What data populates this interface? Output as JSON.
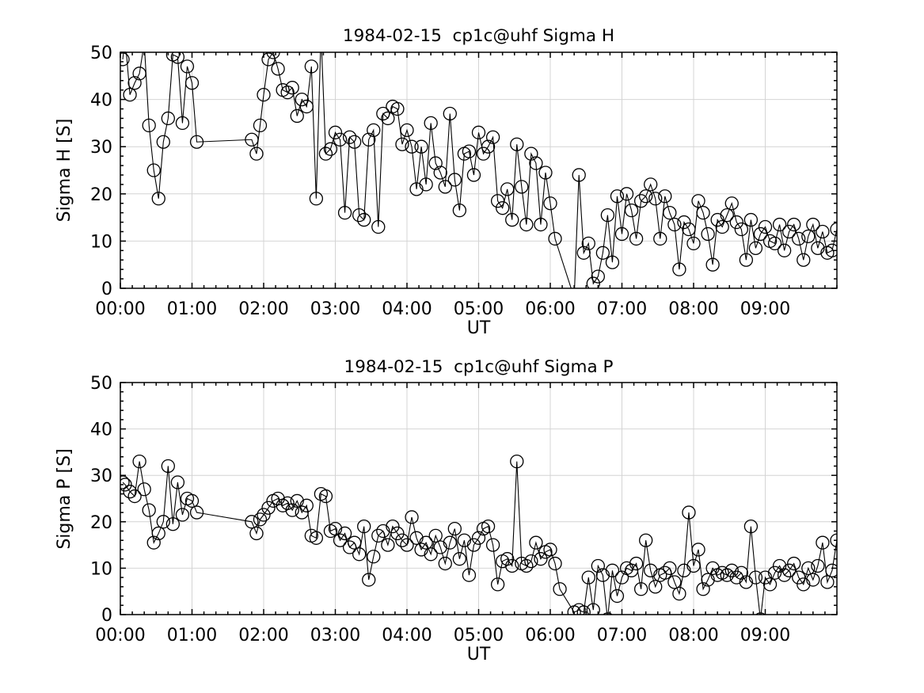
{
  "figure": {
    "background": "#ffffff",
    "foreground": "#000000",
    "grid_color": "#d4d4d4",
    "marker": "open-circle"
  },
  "chart_data": [
    {
      "id": "sigma-h",
      "type": "line",
      "title": "1984-02-15  cp1c@uhf Sigma H",
      "xlabel": "UT",
      "ylabel": "Sigma H [S]",
      "xlim_minutes": [
        0,
        600
      ],
      "ylim": [
        0,
        50
      ],
      "x_major_ticks_minutes": [
        0,
        60,
        120,
        180,
        240,
        300,
        360,
        420,
        480,
        540
      ],
      "x_tick_labels": [
        "00:00",
        "01:00",
        "02:00",
        "03:00",
        "04:00",
        "05:00",
        "06:00",
        "07:00",
        "08:00",
        "09:00"
      ],
      "x_minor_step_minutes": 10,
      "y_major_ticks": [
        0,
        10,
        20,
        30,
        40,
        50
      ],
      "y_tick_labels": [
        "0",
        "10",
        "20",
        "30",
        "40",
        "50"
      ],
      "y_minor_step": 2,
      "grid": true,
      "legend": "none",
      "line_color": "#000000",
      "points": [
        [
          2,
          48.5
        ],
        [
          4,
          53
        ],
        [
          8,
          41
        ],
        [
          12,
          43.5
        ],
        [
          16,
          45.5
        ],
        [
          20,
          52
        ],
        [
          24,
          34.5
        ],
        [
          28,
          25
        ],
        [
          32,
          19
        ],
        [
          36,
          31
        ],
        [
          40,
          36
        ],
        [
          44,
          49.5
        ],
        [
          48,
          49
        ],
        [
          52,
          35
        ],
        [
          56,
          47
        ],
        [
          60,
          43.5
        ],
        [
          64,
          31
        ],
        [
          110,
          31.5
        ],
        [
          114,
          28.5
        ],
        [
          117,
          34.5
        ],
        [
          120,
          41
        ],
        [
          124,
          48.5
        ],
        [
          128,
          50
        ],
        [
          132,
          46.5
        ],
        [
          136,
          42
        ],
        [
          140,
          41.5
        ],
        [
          144,
          42.5
        ],
        [
          148,
          36.5
        ],
        [
          152,
          40
        ],
        [
          156,
          38.5
        ],
        [
          160,
          47
        ],
        [
          164,
          19
        ],
        [
          168,
          54
        ],
        [
          172,
          28.5
        ],
        [
          176,
          29.5
        ],
        [
          180,
          33
        ],
        [
          184,
          31.5
        ],
        [
          188,
          16
        ],
        [
          192,
          32
        ],
        [
          196,
          31
        ],
        [
          200,
          15.5
        ],
        [
          204,
          14.5
        ],
        [
          208,
          31.5
        ],
        [
          212,
          33.5
        ],
        [
          216,
          13
        ],
        [
          220,
          37
        ],
        [
          224,
          36
        ],
        [
          228,
          38.5
        ],
        [
          232,
          38
        ],
        [
          236,
          30.5
        ],
        [
          240,
          33.5
        ],
        [
          244,
          30
        ],
        [
          248,
          21
        ],
        [
          252,
          30
        ],
        [
          256,
          22
        ],
        [
          260,
          35
        ],
        [
          264,
          26.5
        ],
        [
          268,
          24.5
        ],
        [
          272,
          21.5
        ],
        [
          276,
          37
        ],
        [
          280,
          23
        ],
        [
          284,
          16.5
        ],
        [
          288,
          28.5
        ],
        [
          292,
          29
        ],
        [
          296,
          24
        ],
        [
          300,
          33
        ],
        [
          304,
          28.5
        ],
        [
          308,
          30
        ],
        [
          312,
          32
        ],
        [
          316,
          18.5
        ],
        [
          320,
          17
        ],
        [
          324,
          21
        ],
        [
          328,
          14.5
        ],
        [
          332,
          30.5
        ],
        [
          336,
          21.5
        ],
        [
          340,
          13.5
        ],
        [
          344,
          28.5
        ],
        [
          348,
          26.5
        ],
        [
          352,
          13.5
        ],
        [
          356,
          24.5
        ],
        [
          360,
          18
        ],
        [
          364,
          10.5
        ],
        [
          380,
          -2
        ],
        [
          384,
          24
        ],
        [
          388,
          7.5
        ],
        [
          392,
          9.5
        ],
        [
          396,
          1
        ],
        [
          400,
          2.5
        ],
        [
          404,
          7.5
        ],
        [
          408,
          15.5
        ],
        [
          412,
          5.5
        ],
        [
          416,
          19.5
        ],
        [
          420,
          11.5
        ],
        [
          424,
          20
        ],
        [
          428,
          16.5
        ],
        [
          432,
          10.5
        ],
        [
          436,
          18.5
        ],
        [
          440,
          19.5
        ],
        [
          444,
          22
        ],
        [
          448,
          19
        ],
        [
          452,
          10.5
        ],
        [
          456,
          19.5
        ],
        [
          460,
          16
        ],
        [
          464,
          13.5
        ],
        [
          468,
          4
        ],
        [
          472,
          14
        ],
        [
          476,
          12.5
        ],
        [
          480,
          9.5
        ],
        [
          484,
          18.5
        ],
        [
          488,
          16
        ],
        [
          492,
          11.5
        ],
        [
          496,
          5
        ],
        [
          500,
          14.5
        ],
        [
          504,
          13
        ],
        [
          508,
          15.5
        ],
        [
          512,
          18
        ],
        [
          516,
          14
        ],
        [
          520,
          12.5
        ],
        [
          524,
          6
        ],
        [
          528,
          14.5
        ],
        [
          532,
          8.5
        ],
        [
          536,
          11.5
        ],
        [
          540,
          13
        ],
        [
          544,
          10
        ],
        [
          548,
          9.5
        ],
        [
          552,
          13.5
        ],
        [
          556,
          8
        ],
        [
          560,
          12
        ],
        [
          564,
          13.5
        ],
        [
          568,
          10.5
        ],
        [
          572,
          6
        ],
        [
          576,
          11
        ],
        [
          580,
          13.5
        ],
        [
          584,
          8.5
        ],
        [
          588,
          12
        ],
        [
          592,
          7.5
        ],
        [
          596,
          8
        ],
        [
          600,
          12.5
        ]
      ]
    },
    {
      "id": "sigma-p",
      "type": "line",
      "title": "1984-02-15  cp1c@uhf Sigma P",
      "xlabel": "UT",
      "ylabel": "Sigma P [S]",
      "xlim_minutes": [
        0,
        600
      ],
      "ylim": [
        0,
        50
      ],
      "x_major_ticks_minutes": [
        0,
        60,
        120,
        180,
        240,
        300,
        360,
        420,
        480,
        540
      ],
      "x_tick_labels": [
        "00:00",
        "01:00",
        "02:00",
        "03:00",
        "04:00",
        "05:00",
        "06:00",
        "07:00",
        "08:00",
        "09:00"
      ],
      "x_minor_step_minutes": 10,
      "y_major_ticks": [
        0,
        10,
        20,
        30,
        40,
        50
      ],
      "y_tick_labels": [
        "0",
        "10",
        "20",
        "30",
        "40",
        "50"
      ],
      "y_minor_step": 2,
      "grid": true,
      "legend": "none",
      "line_color": "#000000",
      "points": [
        [
          2,
          28.5
        ],
        [
          4,
          28
        ],
        [
          8,
          26.5
        ],
        [
          12,
          25.5
        ],
        [
          16,
          33
        ],
        [
          20,
          27
        ],
        [
          24,
          22.5
        ],
        [
          28,
          15.5
        ],
        [
          32,
          17.5
        ],
        [
          36,
          20
        ],
        [
          40,
          32
        ],
        [
          44,
          19.5
        ],
        [
          48,
          28.5
        ],
        [
          52,
          21.5
        ],
        [
          56,
          25
        ],
        [
          60,
          24.5
        ],
        [
          64,
          22
        ],
        [
          110,
          20
        ],
        [
          114,
          17.5
        ],
        [
          117,
          20.5
        ],
        [
          120,
          21.5
        ],
        [
          124,
          23
        ],
        [
          128,
          24.5
        ],
        [
          132,
          25
        ],
        [
          136,
          23.5
        ],
        [
          140,
          24
        ],
        [
          144,
          22.5
        ],
        [
          148,
          24.5
        ],
        [
          152,
          22
        ],
        [
          156,
          23.5
        ],
        [
          160,
          17
        ],
        [
          164,
          16.5
        ],
        [
          168,
          26
        ],
        [
          172,
          25.5
        ],
        [
          176,
          18
        ],
        [
          180,
          18.5
        ],
        [
          184,
          16
        ],
        [
          188,
          17.5
        ],
        [
          192,
          14.5
        ],
        [
          196,
          15.5
        ],
        [
          200,
          13
        ],
        [
          204,
          19
        ],
        [
          208,
          7.5
        ],
        [
          212,
          12.5
        ],
        [
          216,
          17
        ],
        [
          220,
          18
        ],
        [
          224,
          15
        ],
        [
          228,
          19
        ],
        [
          232,
          17.5
        ],
        [
          236,
          16
        ],
        [
          240,
          15
        ],
        [
          244,
          21
        ],
        [
          248,
          16.5
        ],
        [
          252,
          14
        ],
        [
          256,
          15.5
        ],
        [
          260,
          13
        ],
        [
          264,
          17
        ],
        [
          268,
          14.5
        ],
        [
          272,
          11
        ],
        [
          276,
          15.5
        ],
        [
          280,
          18.5
        ],
        [
          284,
          12
        ],
        [
          288,
          16
        ],
        [
          292,
          8.5
        ],
        [
          296,
          15
        ],
        [
          300,
          16.5
        ],
        [
          304,
          18.5
        ],
        [
          308,
          19
        ],
        [
          312,
          15
        ],
        [
          316,
          6.5
        ],
        [
          320,
          11.5
        ],
        [
          324,
          12
        ],
        [
          328,
          10.5
        ],
        [
          332,
          33
        ],
        [
          336,
          11
        ],
        [
          340,
          10.5
        ],
        [
          344,
          11.5
        ],
        [
          348,
          15.5
        ],
        [
          352,
          12
        ],
        [
          356,
          13.5
        ],
        [
          360,
          14
        ],
        [
          364,
          11
        ],
        [
          368,
          5.5
        ],
        [
          380,
          0.5
        ],
        [
          384,
          1
        ],
        [
          388,
          0.5
        ],
        [
          392,
          8
        ],
        [
          396,
          1
        ],
        [
          400,
          10.5
        ],
        [
          404,
          8.5
        ],
        [
          408,
          -1
        ],
        [
          412,
          9.5
        ],
        [
          416,
          4
        ],
        [
          420,
          8
        ],
        [
          424,
          10
        ],
        [
          428,
          9.5
        ],
        [
          432,
          11
        ],
        [
          436,
          5.5
        ],
        [
          440,
          16
        ],
        [
          444,
          9.5
        ],
        [
          448,
          6
        ],
        [
          452,
          8.5
        ],
        [
          456,
          9
        ],
        [
          460,
          10
        ],
        [
          464,
          7
        ],
        [
          468,
          4.5
        ],
        [
          472,
          9.5
        ],
        [
          476,
          22
        ],
        [
          480,
          10.5
        ],
        [
          484,
          14
        ],
        [
          488,
          5.5
        ],
        [
          492,
          7.5
        ],
        [
          496,
          10
        ],
        [
          500,
          8.5
        ],
        [
          504,
          9
        ],
        [
          508,
          8.5
        ],
        [
          512,
          9.5
        ],
        [
          516,
          8
        ],
        [
          520,
          9
        ],
        [
          524,
          7
        ],
        [
          528,
          19
        ],
        [
          532,
          8
        ],
        [
          536,
          -1
        ],
        [
          540,
          8
        ],
        [
          544,
          6.5
        ],
        [
          548,
          9
        ],
        [
          552,
          10.5
        ],
        [
          556,
          8.5
        ],
        [
          560,
          9.5
        ],
        [
          564,
          11
        ],
        [
          568,
          8
        ],
        [
          572,
          6.5
        ],
        [
          576,
          10
        ],
        [
          580,
          7.5
        ],
        [
          584,
          10.5
        ],
        [
          588,
          15.5
        ],
        [
          592,
          7
        ],
        [
          596,
          9.5
        ],
        [
          600,
          16
        ]
      ]
    }
  ]
}
